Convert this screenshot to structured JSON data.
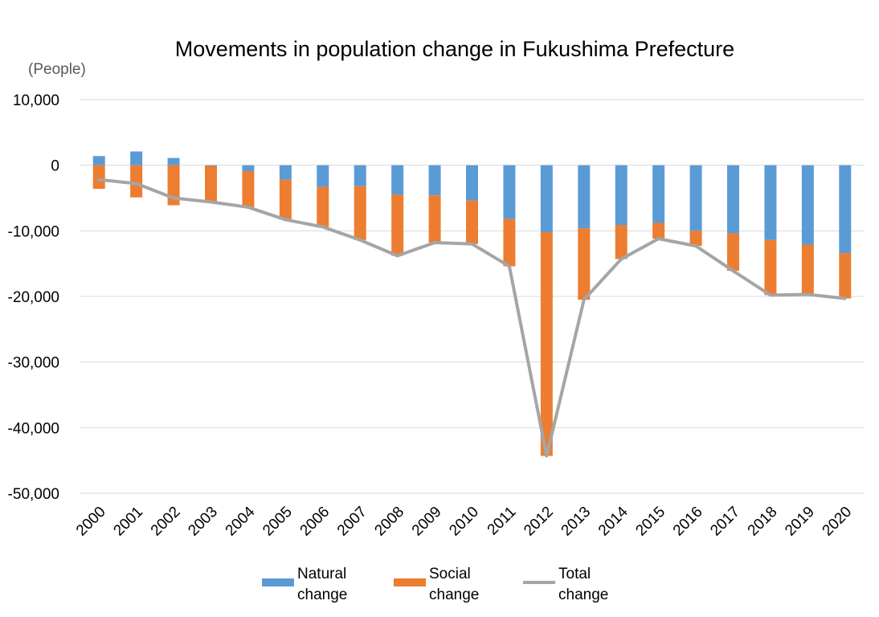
{
  "chart_data": {
    "type": "bar",
    "title": "Movements in population change in Fukushima Prefecture",
    "ylabel": "(People)",
    "xlabel": "",
    "ylim": [
      -50000,
      10000
    ],
    "yticks": [
      10000,
      0,
      -10000,
      -20000,
      -30000,
      -40000,
      -50000
    ],
    "ytick_labels": [
      "10,000",
      "0",
      "-10,000",
      "-20,000",
      "-30,000",
      "-40,000",
      "-50,000"
    ],
    "grid": true,
    "legend_position": "bottom",
    "categories": [
      "2000",
      "2001",
      "2002",
      "2003",
      "2004",
      "2005",
      "2006",
      "2007",
      "2008",
      "2009",
      "2010",
      "2011",
      "2012",
      "2013",
      "2014",
      "2015",
      "2016",
      "2017",
      "2018",
      "2019",
      "2020"
    ],
    "series": [
      {
        "name": "Natural change",
        "kind": "bar",
        "color": "#5b9bd5",
        "values": [
          1400,
          2100,
          1100,
          -100,
          -900,
          -2200,
          -3300,
          -3200,
          -4500,
          -4600,
          -5400,
          -8200,
          -10200,
          -9600,
          -9100,
          -8800,
          -10000,
          -10400,
          -11400,
          -12100,
          -13400
        ]
      },
      {
        "name": "Social change",
        "kind": "bar",
        "color": "#ed7d31",
        "values": [
          -3600,
          -4900,
          -6100,
          -5500,
          -5500,
          -6100,
          -6100,
          -8200,
          -9300,
          -7200,
          -6600,
          -7200,
          -34100,
          -10900,
          -5200,
          -2400,
          -2300,
          -5700,
          -8400,
          -7600,
          -6900
        ]
      },
      {
        "name": "Total change",
        "kind": "line",
        "color": "#a5a5a5",
        "values": [
          -2200,
          -2800,
          -5000,
          -5600,
          -6400,
          -8300,
          -9400,
          -11400,
          -13800,
          -11800,
          -12000,
          -15400,
          -44300,
          -20500,
          -14300,
          -11200,
          -12300,
          -16100,
          -19800,
          -19700,
          -20300
        ]
      }
    ],
    "legend": [
      {
        "line1": "Natural",
        "line2": "change",
        "color": "#5b9bd5",
        "kind": "bar"
      },
      {
        "line1": "Social",
        "line2": "change",
        "color": "#ed7d31",
        "kind": "bar"
      },
      {
        "line1": "Total",
        "line2": "change",
        "color": "#a5a5a5",
        "kind": "line"
      }
    ]
  }
}
